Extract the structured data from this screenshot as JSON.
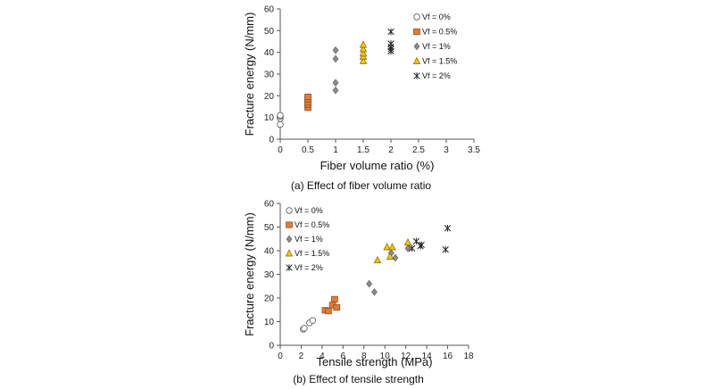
{
  "chart_data": [
    {
      "type": "scatter",
      "caption": "(a)  Effect of fiber volume ratio",
      "xlabel": "Fiber volume ratio (%)",
      "ylabel": "Fracture energy (N/mm)",
      "xlim": [
        0,
        3.5
      ],
      "ylim": [
        0,
        60
      ],
      "xticks": [
        0,
        0.5,
        1,
        1.5,
        2,
        2.5,
        3,
        3.5
      ],
      "xtick_labels": [
        "0",
        "0.5",
        "1",
        "1.5",
        "2",
        "2.5",
        "3",
        "3.5"
      ],
      "yticks": [
        0,
        10,
        20,
        30,
        40,
        50,
        60
      ],
      "ytick_labels": [
        "0",
        "10",
        "20",
        "30",
        "40",
        "50",
        "60"
      ],
      "grid": false,
      "legend_position": "top-right",
      "series": [
        {
          "name": "Vf = 0%",
          "marker": "circle",
          "color": "#ffffff",
          "points": [
            [
              0,
              6.8
            ],
            [
              0,
              9.5
            ],
            [
              0,
              10.5
            ],
            [
              0,
              11.0
            ]
          ]
        },
        {
          "name": "Vf = 0.5%",
          "marker": "square",
          "color": "#e07b39",
          "points": [
            [
              0.5,
              14.5
            ],
            [
              0.5,
              16.0
            ],
            [
              0.5,
              17.0
            ],
            [
              0.5,
              18.5
            ],
            [
              0.5,
              19.5
            ]
          ]
        },
        {
          "name": "Vf = 1%",
          "marker": "diamond",
          "color": "#8c8c8c",
          "points": [
            [
              1,
              22.5
            ],
            [
              1,
              26.0
            ],
            [
              1,
              37.0
            ],
            [
              1,
              41.0
            ]
          ]
        },
        {
          "name": "Vf = 1.5%",
          "marker": "triangle",
          "color": "#f5c518",
          "points": [
            [
              1.5,
              36.0
            ],
            [
              1.5,
              38.0
            ],
            [
              1.5,
              39.5
            ],
            [
              1.5,
              41.5
            ],
            [
              1.5,
              43.5
            ]
          ]
        },
        {
          "name": "Vf = 2%",
          "marker": "asterisk",
          "color": "#222222",
          "points": [
            [
              2,
              40.5
            ],
            [
              2,
              41.5
            ],
            [
              2,
              42.5
            ],
            [
              2,
              44.0
            ],
            [
              2,
              49.5
            ]
          ]
        }
      ]
    },
    {
      "type": "scatter",
      "caption": "(b)  Effect of tensile strength",
      "xlabel": "Tensile strength (MPa)",
      "ylabel": "Fracture energy (N/mm)",
      "xlim": [
        0,
        18
      ],
      "ylim": [
        0,
        60
      ],
      "xticks": [
        0,
        2,
        4,
        6,
        8,
        10,
        12,
        14,
        16,
        18
      ],
      "xtick_labels": [
        "0",
        "2",
        "4",
        "6",
        "8",
        "10",
        "12",
        "14",
        "16",
        "18"
      ],
      "yticks": [
        0,
        10,
        20,
        30,
        40,
        50,
        60
      ],
      "ytick_labels": [
        "0",
        "10",
        "20",
        "30",
        "40",
        "50",
        "60"
      ],
      "grid": false,
      "legend_position": "top-left",
      "series": [
        {
          "name": "Vf = 0%",
          "marker": "circle",
          "color": "#ffffff",
          "points": [
            [
              2.2,
              6.8
            ],
            [
              2.3,
              7.2
            ],
            [
              2.8,
              9.5
            ],
            [
              3.1,
              10.5
            ]
          ]
        },
        {
          "name": "Vf = 0.5%",
          "marker": "square",
          "color": "#e07b39",
          "points": [
            [
              4.3,
              14.8
            ],
            [
              4.6,
              14.5
            ],
            [
              5.0,
              17.0
            ],
            [
              5.2,
              19.5
            ],
            [
              5.4,
              16.0
            ]
          ]
        },
        {
          "name": "Vf = 1%",
          "marker": "diamond",
          "color": "#8c8c8c",
          "points": [
            [
              8.5,
              26.0
            ],
            [
              9.0,
              22.5
            ],
            [
              10.6,
              39.0
            ],
            [
              11.0,
              37.0
            ],
            [
              12.2,
              41.0
            ]
          ]
        },
        {
          "name": "Vf = 1.5%",
          "marker": "triangle",
          "color": "#f5c518",
          "points": [
            [
              9.3,
              36.0
            ],
            [
              10.2,
              41.5
            ],
            [
              10.5,
              37.5
            ],
            [
              10.7,
              41.5
            ],
            [
              12.2,
              43.5
            ]
          ]
        },
        {
          "name": "Vf = 2%",
          "marker": "asterisk",
          "color": "#222222",
          "points": [
            [
              12.6,
              41.0
            ],
            [
              13.0,
              44.0
            ],
            [
              13.4,
              42.0
            ],
            [
              13.5,
              42.5
            ],
            [
              15.8,
              40.5
            ],
            [
              16.0,
              49.5
            ]
          ]
        }
      ]
    }
  ]
}
